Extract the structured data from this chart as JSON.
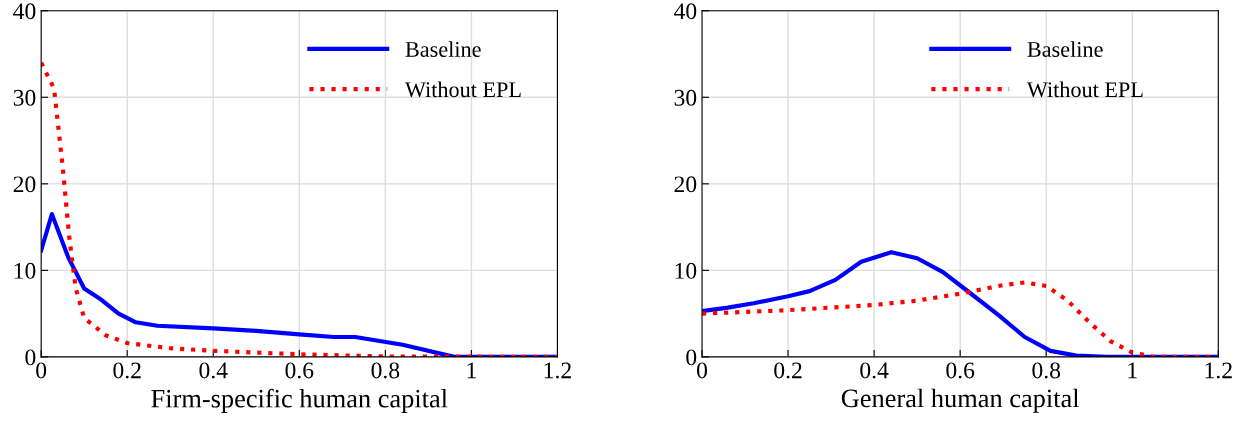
{
  "chart_data": [
    {
      "type": "line",
      "xlabel": "Firm-specific human capital",
      "xlim": [
        0,
        1.2
      ],
      "xticks": [
        0,
        0.2,
        0.4,
        0.6,
        0.8,
        1,
        1.2
      ],
      "ylim": [
        0,
        40
      ],
      "yticks": [
        0,
        10,
        20,
        30,
        40
      ],
      "grid": true,
      "legend": "top right",
      "marker": "none",
      "series": [
        {
          "name": "Baseline",
          "color": "#0000ff",
          "line_style": "solid",
          "x": [
            0,
            0.025,
            0.063,
            0.1,
            0.14,
            0.18,
            0.22,
            0.27,
            0.4,
            0.5,
            0.6,
            0.68,
            0.73,
            0.84,
            0.96,
            1.2
          ],
          "values": [
            12.3,
            16.5,
            11.5,
            7.9,
            6.6,
            5,
            4,
            3.6,
            3.3,
            3,
            2.6,
            2.3,
            2.3,
            1.4,
            0,
            0
          ]
        },
        {
          "name": "Without EPL",
          "color": "#ff0000",
          "line_style": "dotted",
          "x": [
            0,
            0.03,
            0.05,
            0.065,
            0.08,
            0.1,
            0.15,
            0.2,
            0.3,
            0.4,
            0.6,
            0.8,
            1.2
          ],
          "values": [
            34,
            31,
            22,
            14,
            8,
            4.5,
            2.5,
            1.6,
            1,
            0.7,
            0.3,
            0.05,
            0
          ]
        }
      ]
    },
    {
      "type": "line",
      "xlabel": "General human capital",
      "xlim": [
        0,
        1.2
      ],
      "xticks": [
        0,
        0.2,
        0.4,
        0.6,
        0.8,
        1,
        1.2
      ],
      "ylim": [
        0,
        40
      ],
      "yticks": [
        0,
        10,
        20,
        30,
        40
      ],
      "grid": true,
      "legend": "top",
      "marker": "none",
      "series": [
        {
          "name": "Baseline",
          "color": "#0000ff",
          "line_style": "solid",
          "x": [
            0,
            0.06,
            0.12,
            0.2,
            0.25,
            0.31,
            0.37,
            0.44,
            0.5,
            0.56,
            0.62,
            0.69,
            0.75,
            0.81,
            0.87,
            0.94,
            1.2
          ],
          "values": [
            5.3,
            5.7,
            6.2,
            7,
            7.6,
            8.9,
            11,
            12.1,
            11.4,
            9.8,
            7.5,
            4.8,
            2.3,
            0.7,
            0.15,
            0,
            0
          ]
        },
        {
          "name": "Without EPL",
          "color": "#ff0000",
          "line_style": "dotted",
          "x": [
            0,
            0.2,
            0.4,
            0.5,
            0.6,
            0.7,
            0.75,
            0.8,
            0.85,
            0.9,
            0.95,
            1.0,
            1.05,
            1.2
          ],
          "values": [
            5,
            5.4,
            6,
            6.5,
            7.3,
            8.3,
            8.6,
            8.2,
            6.5,
            4,
            1.8,
            0.5,
            0,
            0
          ]
        }
      ]
    }
  ]
}
